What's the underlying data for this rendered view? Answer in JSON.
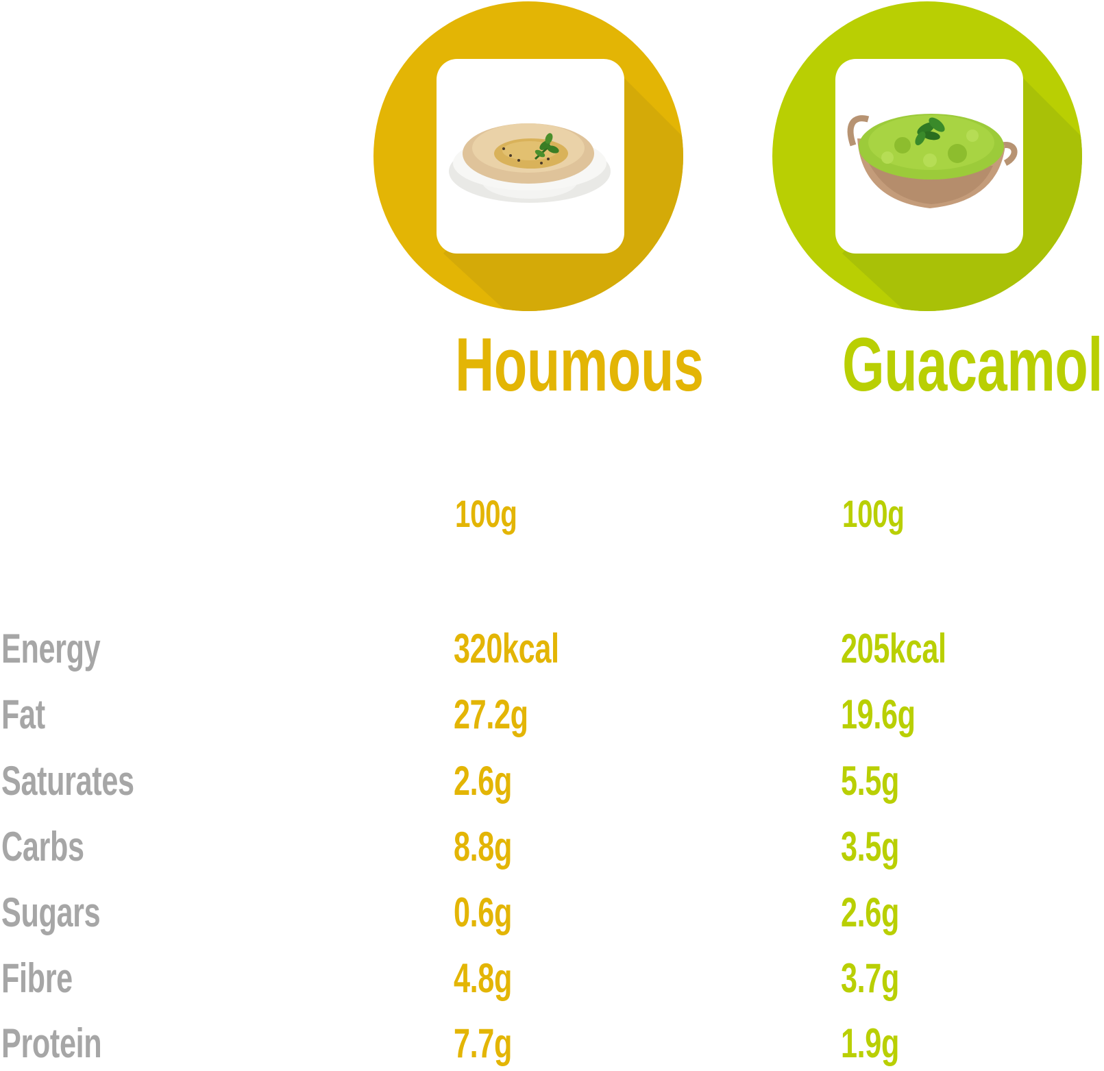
{
  "colors": {
    "houmous": "#e3b505",
    "houmous_shadow": "#d4aa08",
    "guacamole": "#b9cf03",
    "guacamole_shadow": "#a9c107",
    "label": "#a6a6a6"
  },
  "dishes": [
    {
      "name": "Houmous",
      "serving": "100g",
      "image_icon": "houmous-bowl-icon"
    },
    {
      "name": "Guacamole",
      "serving": "100g",
      "image_icon": "guacamole-bowl-icon"
    }
  ],
  "nutrients": [
    {
      "label": "Energy",
      "houmous": "320kcal",
      "guacamole": "205kcal"
    },
    {
      "label": "Fat",
      "houmous": "27.2g",
      "guacamole": "19.6g"
    },
    {
      "label": "Saturates",
      "houmous": "2.6g",
      "guacamole": "5.5g"
    },
    {
      "label": "Carbs",
      "houmous": "8.8g",
      "guacamole": "3.5g"
    },
    {
      "label": "Sugars",
      "houmous": "0.6g",
      "guacamole": "2.6g"
    },
    {
      "label": "Fibre",
      "houmous": "4.8g",
      "guacamole": "3.7g"
    },
    {
      "label": "Protein",
      "houmous": "7.7g",
      "guacamole": "1.9g"
    }
  ]
}
